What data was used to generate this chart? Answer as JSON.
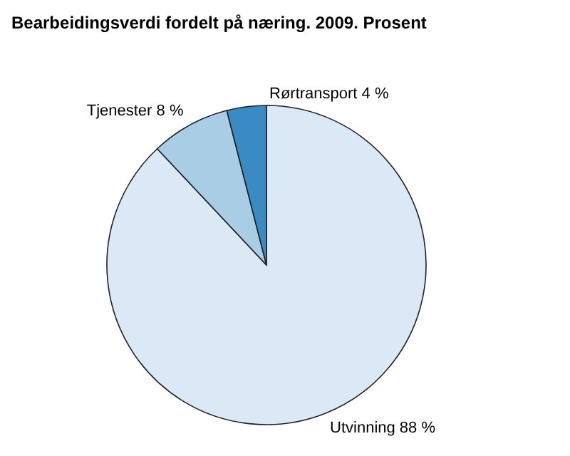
{
  "chart_data": {
    "type": "pie",
    "title": "Bearbeidingsverdi fordelt på næring. 2009. Prosent",
    "categories": [
      "Utvinning",
      "Tjenester",
      "Rørtransport"
    ],
    "values": [
      88,
      8,
      4
    ],
    "colors": [
      "#dbe9f6",
      "#a9cde5",
      "#3a8ac4"
    ],
    "value_labels": [
      "88 %",
      "8 %",
      "4 %"
    ]
  }
}
